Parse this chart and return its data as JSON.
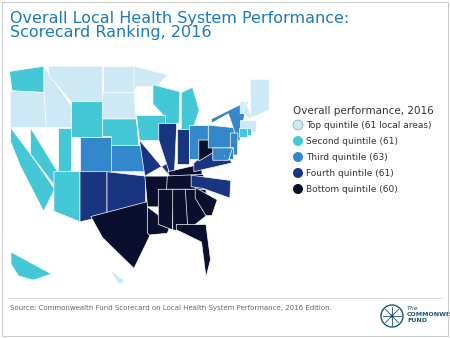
{
  "title_line1": "Overall Local Health System Performance:",
  "title_line2": "Scorecard Ranking, 2016",
  "title_color": "#1a7abf",
  "title_fontsize": 11.5,
  "background_color": "#ffffff",
  "legend_title": "Overall performance, 2016",
  "legend_title_fontsize": 7.5,
  "legend_items": [
    {
      "label": "Top quintile (61 local areas)",
      "color": "#cce9f5"
    },
    {
      "label": "Second quintile (61)",
      "color": "#44c8d8"
    },
    {
      "label": "Third quintile (63)",
      "color": "#3388cc"
    },
    {
      "label": "Fourth quintile (61)",
      "color": "#1a3580"
    },
    {
      "label": "Bottom quintile (60)",
      "color": "#0a0f2d"
    }
  ],
  "legend_fontsize": 6.5,
  "source_text": "Source: Commonwealth Fund Scorecard on Local Health System Performance, 2016 Edition.",
  "source_fontsize": 5.0,
  "border_color": "#cccccc",
  "quintile_colors": [
    "#cce9f5",
    "#44c8d8",
    "#3388cc",
    "#1a3580",
    "#0a0f2d"
  ],
  "map_bg": "#ffffff",
  "logo_color": "#1a5276",
  "separator_color": "#cccccc"
}
